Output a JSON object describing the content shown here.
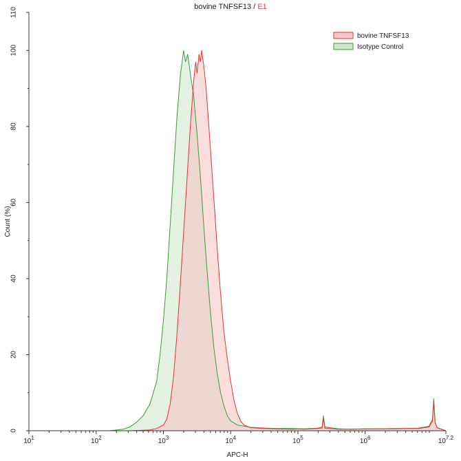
{
  "title": {
    "sample": "bovine TNFSF13",
    "separator": " / ",
    "gate": "E1",
    "gate_color": "#e23b3b"
  },
  "chart_data": {
    "type": "area",
    "xlabel": "APC-H",
    "ylabel": "Count (%)",
    "x_scale": "log",
    "xlim": [
      1,
      7.2
    ],
    "ylim": [
      0,
      110
    ],
    "x_ticks": [
      {
        "value": 1,
        "base": "10",
        "exp": "1"
      },
      {
        "value": 2,
        "base": "10",
        "exp": "2"
      },
      {
        "value": 3,
        "base": "10",
        "exp": "3"
      },
      {
        "value": 4,
        "base": "10",
        "exp": "4"
      },
      {
        "value": 5,
        "base": "10",
        "exp": "5"
      },
      {
        "value": 6,
        "base": "10",
        "exp": "6"
      },
      {
        "value": 7.2,
        "base": "10",
        "exp": "7.2"
      }
    ],
    "y_ticks": [
      0,
      20,
      40,
      60,
      80,
      100,
      110
    ],
    "legend_position": "top-right",
    "series": [
      {
        "name": "bovine TNFSF13",
        "stroke": "#e8312f",
        "fill": "#f7c6c6",
        "points": [
          [
            1.0,
            0
          ],
          [
            2.5,
            0
          ],
          [
            2.8,
            0.2
          ],
          [
            2.9,
            0.6
          ],
          [
            3.0,
            1.5
          ],
          [
            3.05,
            3
          ],
          [
            3.1,
            7
          ],
          [
            3.15,
            14
          ],
          [
            3.2,
            25
          ],
          [
            3.25,
            38
          ],
          [
            3.3,
            52
          ],
          [
            3.35,
            66
          ],
          [
            3.4,
            80
          ],
          [
            3.45,
            92
          ],
          [
            3.48,
            97
          ],
          [
            3.5,
            94
          ],
          [
            3.53,
            99
          ],
          [
            3.55,
            97
          ],
          [
            3.57,
            100
          ],
          [
            3.6,
            96
          ],
          [
            3.63,
            91
          ],
          [
            3.66,
            84
          ],
          [
            3.7,
            74
          ],
          [
            3.75,
            61
          ],
          [
            3.8,
            48
          ],
          [
            3.85,
            36
          ],
          [
            3.9,
            26
          ],
          [
            3.95,
            19
          ],
          [
            4.0,
            13
          ],
          [
            4.05,
            8
          ],
          [
            4.1,
            4.5
          ],
          [
            4.15,
            2.5
          ],
          [
            4.2,
            1.5
          ],
          [
            4.3,
            0.8
          ],
          [
            4.5,
            0.6
          ],
          [
            4.7,
            0.5
          ],
          [
            4.9,
            0.4
          ],
          [
            5.0,
            0.5
          ],
          [
            5.1,
            0.4
          ],
          [
            5.2,
            0.5
          ],
          [
            5.3,
            0.6
          ],
          [
            5.36,
            0.7
          ],
          [
            5.38,
            3.2
          ],
          [
            5.4,
            0.7
          ],
          [
            5.6,
            0.4
          ],
          [
            5.8,
            0.4
          ],
          [
            6.0,
            0.5
          ],
          [
            6.2,
            0.5
          ],
          [
            6.4,
            0.5
          ],
          [
            6.6,
            0.6
          ],
          [
            6.8,
            0.6
          ],
          [
            6.95,
            1.0
          ],
          [
            7.0,
            2.5
          ],
          [
            7.02,
            7.5
          ],
          [
            7.04,
            2.0
          ],
          [
            7.07,
            0.8
          ],
          [
            7.2,
            0
          ]
        ]
      },
      {
        "name": "Isotype Control",
        "stroke": "#3d9a36",
        "fill": "#cfe8cb",
        "points": [
          [
            1.0,
            0
          ],
          [
            2.2,
            0
          ],
          [
            2.4,
            0.4
          ],
          [
            2.5,
            1.0
          ],
          [
            2.6,
            2.2
          ],
          [
            2.7,
            4
          ],
          [
            2.8,
            7
          ],
          [
            2.9,
            13
          ],
          [
            2.95,
            20
          ],
          [
            3.0,
            29
          ],
          [
            3.05,
            40
          ],
          [
            3.1,
            54
          ],
          [
            3.15,
            68
          ],
          [
            3.2,
            82
          ],
          [
            3.25,
            93
          ],
          [
            3.3,
            100
          ],
          [
            3.33,
            97
          ],
          [
            3.36,
            99
          ],
          [
            3.4,
            94
          ],
          [
            3.45,
            88
          ],
          [
            3.5,
            78
          ],
          [
            3.55,
            67
          ],
          [
            3.6,
            54
          ],
          [
            3.65,
            42
          ],
          [
            3.7,
            31
          ],
          [
            3.75,
            22
          ],
          [
            3.8,
            15
          ],
          [
            3.85,
            10
          ],
          [
            3.9,
            6.5
          ],
          [
            3.95,
            4
          ],
          [
            4.0,
            2.6
          ],
          [
            4.1,
            1.5
          ],
          [
            4.3,
            0.9
          ],
          [
            4.5,
            0.7
          ],
          [
            4.7,
            0.6
          ],
          [
            4.9,
            0.6
          ],
          [
            5.1,
            0.5
          ],
          [
            5.3,
            0.7
          ],
          [
            5.36,
            1.0
          ],
          [
            5.38,
            4.0
          ],
          [
            5.4,
            1.0
          ],
          [
            5.6,
            0.5
          ],
          [
            5.8,
            0.4
          ],
          [
            6.0,
            0.5
          ],
          [
            6.2,
            0.5
          ],
          [
            6.4,
            0.6
          ],
          [
            6.6,
            0.6
          ],
          [
            6.8,
            0.7
          ],
          [
            6.95,
            1.2
          ],
          [
            7.0,
            3.0
          ],
          [
            7.02,
            8.5
          ],
          [
            7.04,
            2.2
          ],
          [
            7.07,
            0.8
          ],
          [
            7.2,
            0
          ]
        ]
      }
    ]
  }
}
